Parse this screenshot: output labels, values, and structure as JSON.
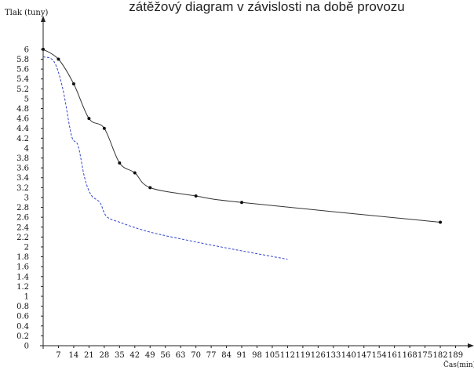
{
  "chart_data": {
    "type": "line",
    "title": "zátěžový diagram v závislosti na době provozu",
    "ylabel": "Tlak (tuny)",
    "xlabel": "Čas(min)",
    "xlim": [
      0,
      196
    ],
    "ylim": [
      0,
      6.3
    ],
    "x_ticks": [
      7,
      14,
      21,
      28,
      35,
      42,
      49,
      56,
      63,
      70,
      77,
      84,
      91,
      98,
      105,
      112,
      119,
      126,
      133,
      140,
      147,
      154,
      161,
      168,
      175,
      182,
      189
    ],
    "x_tick_labels": [
      "7",
      "14",
      "21",
      "28",
      "35",
      "42",
      "49",
      "56",
      "63",
      "70",
      "77",
      "84",
      "91",
      "98",
      "105",
      "112",
      "119",
      "126",
      "133",
      "140",
      "147",
      "154",
      "161",
      "168",
      "175",
      "182",
      "189"
    ],
    "y_ticks": [
      0,
      0.2,
      0.4,
      0.6,
      0.8,
      1,
      1.2,
      1.4,
      1.6,
      1.8,
      2,
      2.2,
      2.4,
      2.6,
      2.8,
      3,
      3.2,
      3.4,
      3.6,
      3.8,
      4,
      4.2,
      4.4,
      4.6,
      4.8,
      5,
      5.2,
      5.4,
      5.6,
      5.8,
      6
    ],
    "y_tick_labels": [
      "0",
      "0.2",
      "0.4",
      "0.6",
      "0.8",
      "1",
      "1.2",
      "1.4",
      "1.6",
      "1.8",
      "2",
      "2.2",
      "2.4",
      "2.6",
      "2.8",
      "3",
      "3.2",
      "3.4",
      "3.6",
      "3.8",
      "4",
      "4.2",
      "4.4",
      "4.6",
      "4.8",
      "5",
      "5.2",
      "5.4",
      "5.6",
      "5.8",
      "6"
    ],
    "grid": false,
    "series": [
      {
        "style": "solid",
        "color": "#333333",
        "markers": true,
        "points": [
          {
            "x": 0,
            "y": 6.0
          },
          {
            "x": 7,
            "y": 5.8
          },
          {
            "x": 14,
            "y": 5.3
          },
          {
            "x": 21,
            "y": 4.6
          },
          {
            "x": 28,
            "y": 4.4
          },
          {
            "x": 35,
            "y": 3.7
          },
          {
            "x": 42,
            "y": 3.5
          },
          {
            "x": 49,
            "y": 3.2
          },
          {
            "x": 70,
            "y": 3.03
          },
          {
            "x": 91,
            "y": 2.9
          },
          {
            "x": 182,
            "y": 2.5
          }
        ]
      },
      {
        "style": "dashed",
        "color": "#3344cc",
        "markers": false,
        "points": [
          {
            "x": 0,
            "y": 5.85
          },
          {
            "x": 5,
            "y": 5.75
          },
          {
            "x": 9,
            "y": 5.2
          },
          {
            "x": 13,
            "y": 4.25
          },
          {
            "x": 16,
            "y": 4.05
          },
          {
            "x": 19,
            "y": 3.4
          },
          {
            "x": 22,
            "y": 3.05
          },
          {
            "x": 26,
            "y": 2.9
          },
          {
            "x": 29,
            "y": 2.62
          },
          {
            "x": 35,
            "y": 2.5
          },
          {
            "x": 49,
            "y": 2.3
          },
          {
            "x": 70,
            "y": 2.1
          },
          {
            "x": 91,
            "y": 1.92
          },
          {
            "x": 112,
            "y": 1.75
          }
        ]
      }
    ]
  },
  "colors": {
    "axis": "#222222",
    "text": "#111111"
  }
}
